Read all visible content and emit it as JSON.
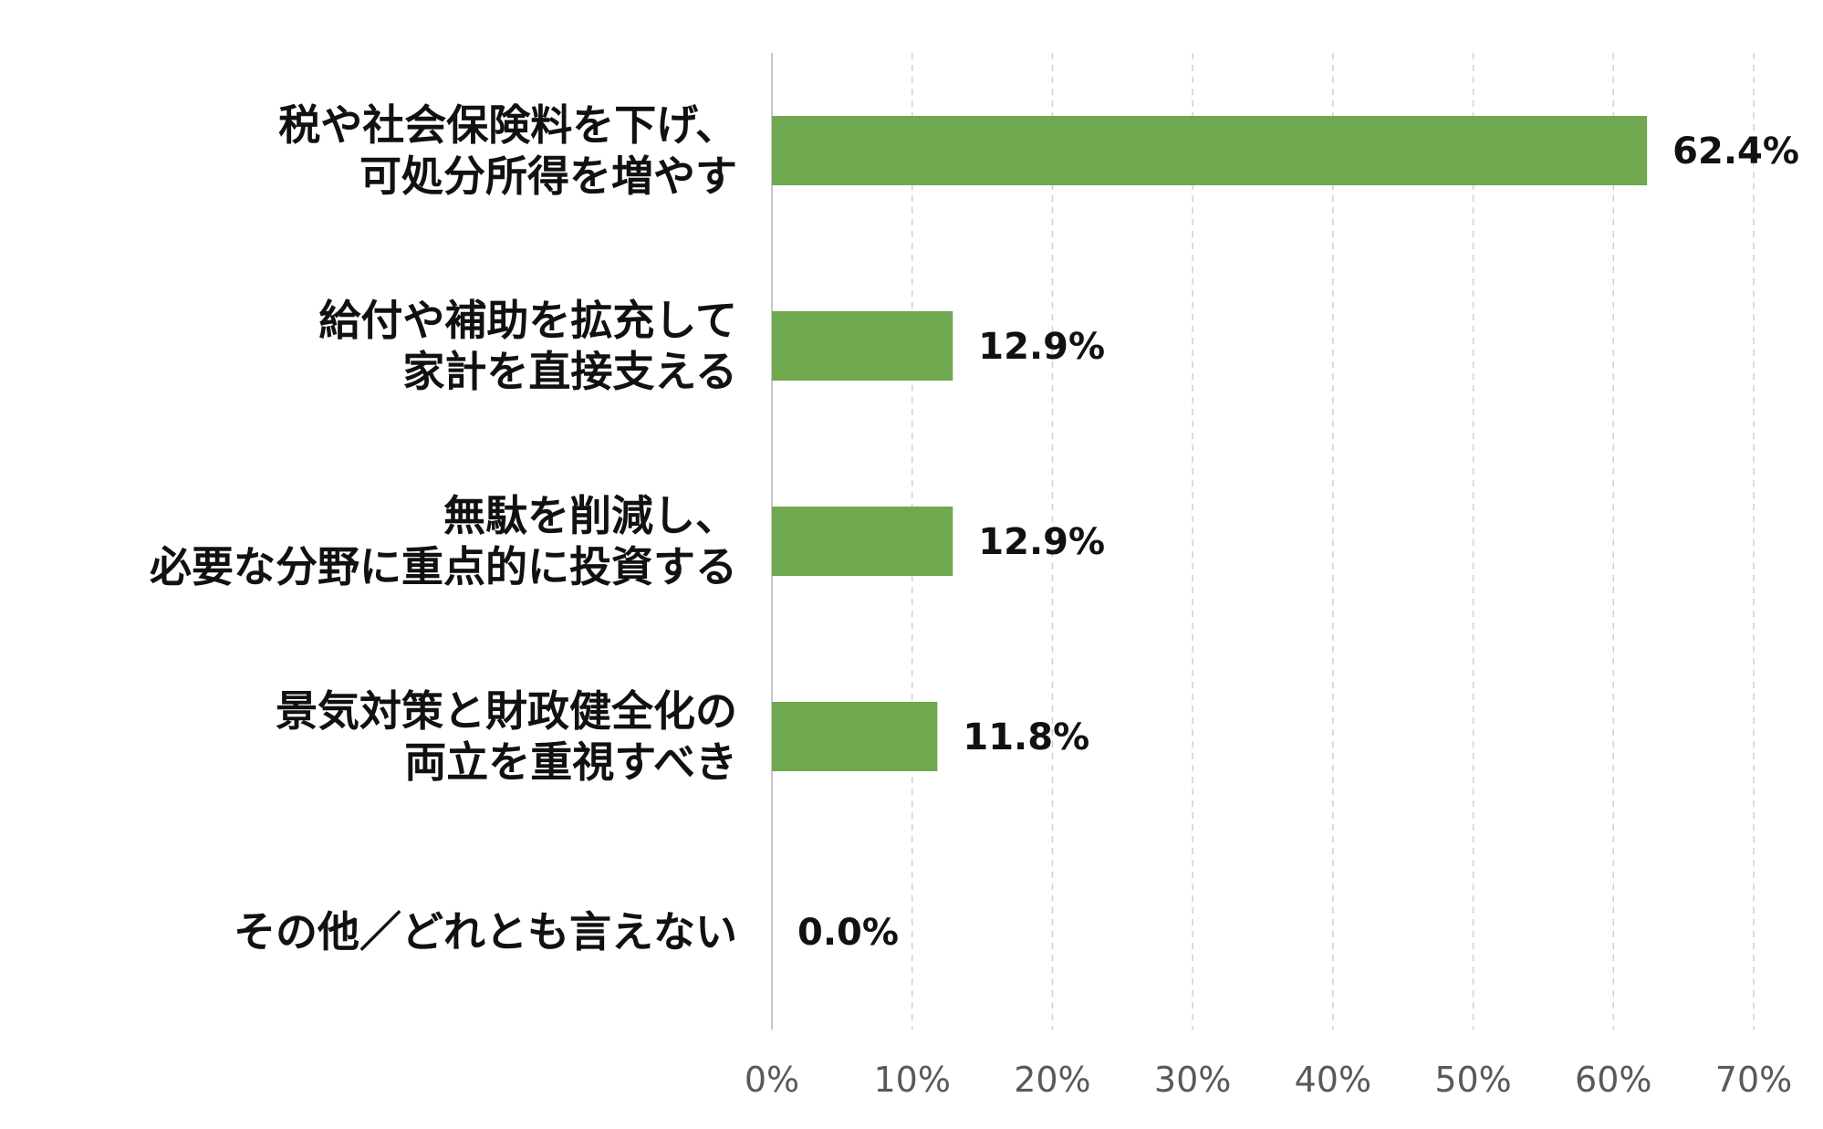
{
  "chart_data": {
    "type": "bar",
    "orientation": "horizontal",
    "categories": [
      [
        "税や社会保険料を下げ、",
        "可処分所得を増やす"
      ],
      [
        "給付や補助を拡充して",
        "家計を直接支える"
      ],
      [
        "無駄を削減し、",
        "必要な分野に重点的に投資する"
      ],
      [
        "景気対策と財政健全化の",
        "両立を重視すべき"
      ],
      [
        "その他／どれとも言えない"
      ]
    ],
    "values": [
      62.4,
      12.9,
      12.9,
      11.8,
      0.0
    ],
    "value_labels": [
      "62.4%",
      "12.9%",
      "12.9%",
      "11.8%",
      "0.0%"
    ],
    "xlim": [
      0,
      70
    ],
    "x_ticks": [
      0,
      10,
      20,
      30,
      40,
      50,
      60,
      70
    ],
    "x_tick_labels": [
      "0%",
      "10%",
      "20%",
      "30%",
      "40%",
      "50%",
      "60%",
      "70%"
    ],
    "title": "",
    "xlabel": "",
    "ylabel": "",
    "grid": "vertical dashed",
    "legend": "none",
    "colors": {
      "bar": "#70A850",
      "grid": "#D0D0D0",
      "axis": "#C8C8C8",
      "text": "#111111",
      "tick_text": "#595959"
    }
  }
}
